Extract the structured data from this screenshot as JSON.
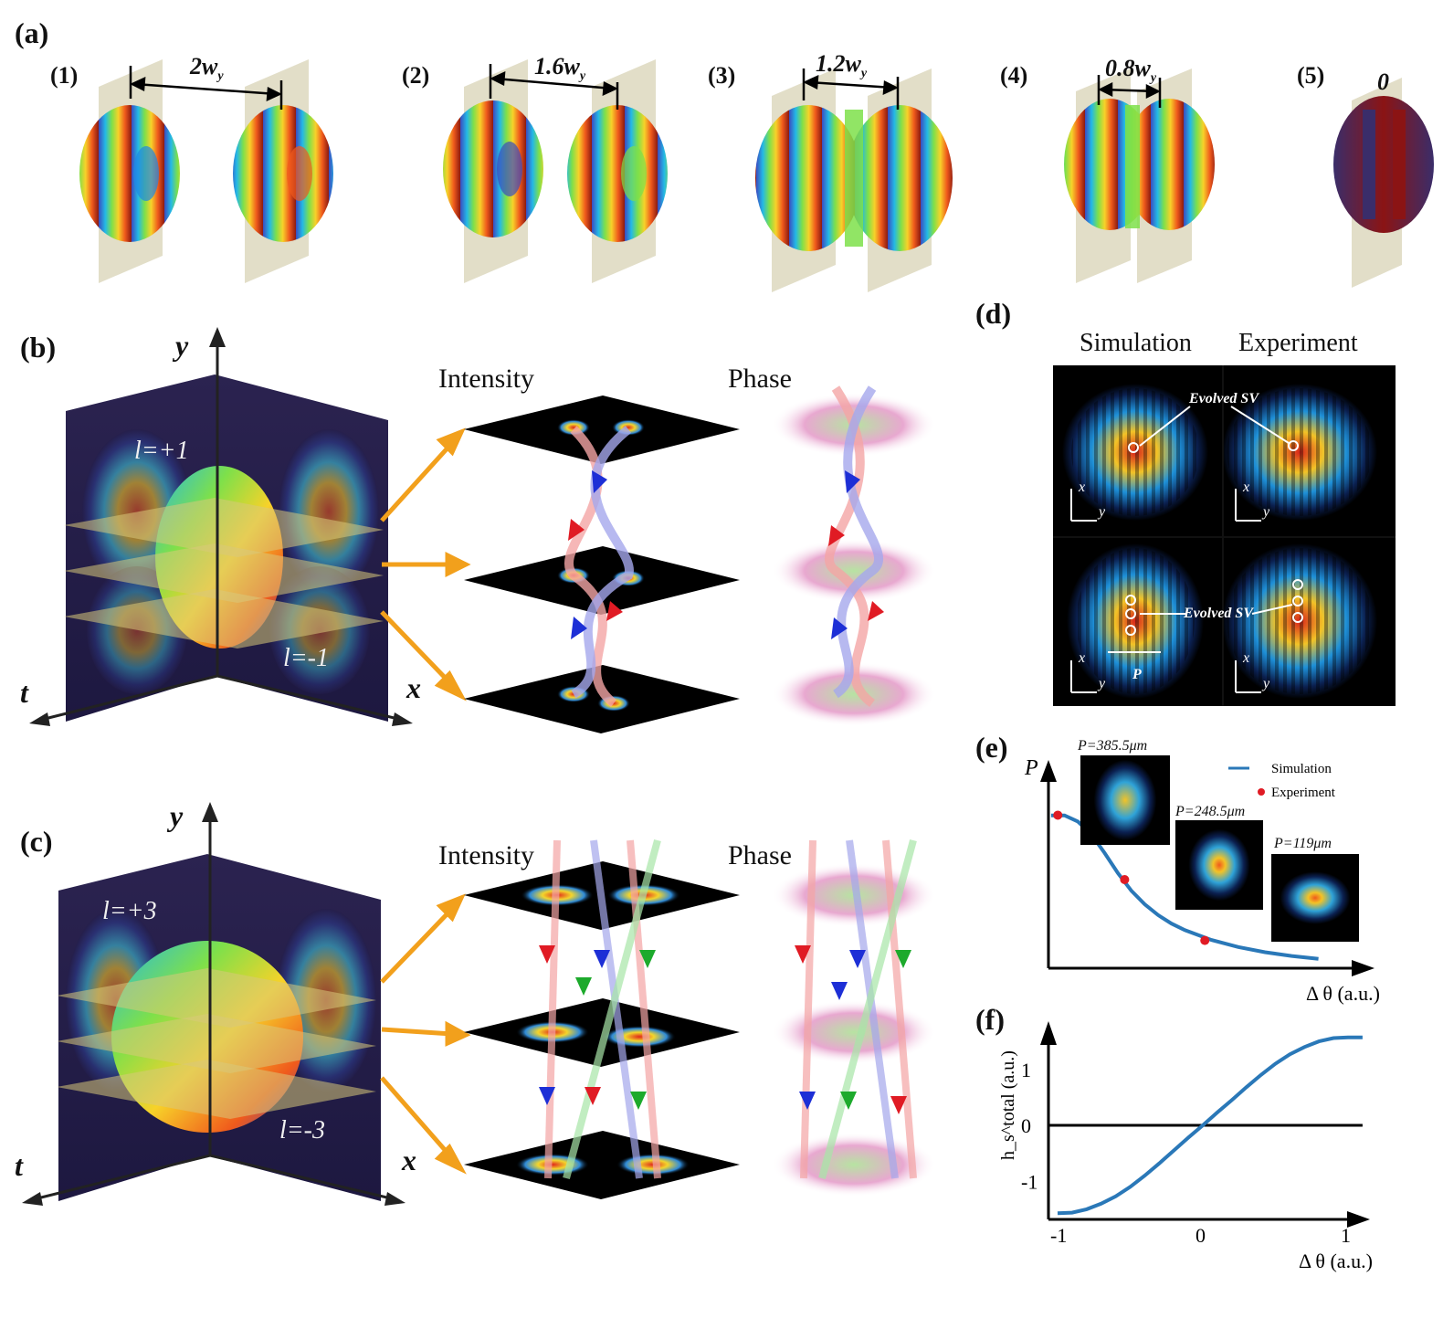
{
  "panel_a": {
    "label": "(a)",
    "items": [
      {
        "num": "(1)",
        "dist": "2w",
        "sub": "y"
      },
      {
        "num": "(2)",
        "dist": "1.6w",
        "sub": "y"
      },
      {
        "num": "(3)",
        "dist": "1.2w",
        "sub": "y"
      },
      {
        "num": "(4)",
        "dist": "0.8w",
        "sub": "y"
      },
      {
        "num": "(5)",
        "dist": "0",
        "sub": ""
      }
    ]
  },
  "panel_b": {
    "label": "(b)",
    "axis_y": "y",
    "axis_t": "t",
    "axis_x": "x",
    "l_top": "l=+1",
    "l_bottom": "l=-1",
    "col_intensity": "Intensity",
    "col_phase": "Phase"
  },
  "panel_c": {
    "label": "(c)",
    "axis_y": "y",
    "axis_t": "t",
    "axis_x": "x",
    "l_top": "l=+3",
    "l_bottom": "l=-3",
    "col_intensity": "Intensity",
    "col_phase": "Phase"
  },
  "panel_d": {
    "label": "(d)",
    "col_sim": "Simulation",
    "col_exp": "Experiment",
    "annot_top": "Evolved SV",
    "annot_bottom": "Evolved SV",
    "x": "x",
    "y": "y",
    "p": "P"
  },
  "panel_e": {
    "label": "(e)",
    "insets": [
      "P=385.5μm",
      "P=248.5μm",
      "P=119μm"
    ],
    "chart_data": {
      "type": "line",
      "ylabel": "P",
      "xlabel": "Δ θ (a.u.)",
      "legend": "top-right",
      "series": [
        {
          "name": "Simulation",
          "style": "line",
          "x": [
            -1.0,
            -0.9,
            -0.8,
            -0.7,
            -0.6,
            -0.5,
            -0.4,
            -0.3,
            -0.2,
            -0.1,
            0.0,
            0.2,
            0.4,
            0.6,
            0.8,
            1.0
          ],
          "y": [
            385,
            385,
            372,
            345,
            305,
            262,
            225,
            196,
            173,
            155,
            141,
            120,
            105,
            94,
            86,
            80
          ]
        },
        {
          "name": "Experiment",
          "style": "scatter",
          "x": [
            -0.95,
            -0.45,
            0.15
          ],
          "y": [
            385.5,
            248.5,
            119
          ]
        }
      ],
      "colors": {
        "Simulation": "#2a78b8",
        "Experiment": "#e01b24"
      }
    }
  },
  "panel_f": {
    "label": "(f)",
    "chart_data": {
      "type": "line",
      "xlabel": "Δ θ (a.u.)",
      "ylabel": "h_s^total (a.u.)",
      "xticks": [
        "-1",
        "0",
        "1"
      ],
      "yticks": [
        "1",
        "0",
        "-1"
      ],
      "ylim": [
        -1.6,
        1.6
      ],
      "series": [
        {
          "name": "",
          "x": [
            -1.0,
            -0.9,
            -0.8,
            -0.7,
            -0.6,
            -0.5,
            -0.4,
            -0.3,
            -0.2,
            -0.1,
            0.0,
            0.1,
            0.2,
            0.3,
            0.4,
            0.5,
            0.6,
            0.7,
            0.8,
            0.9,
            1.0,
            1.1
          ],
          "y": [
            -1.57,
            -1.56,
            -1.5,
            -1.4,
            -1.27,
            -1.1,
            -0.9,
            -0.68,
            -0.45,
            -0.22,
            0.0,
            0.23,
            0.45,
            0.68,
            0.9,
            1.1,
            1.27,
            1.4,
            1.5,
            1.56,
            1.57,
            1.57
          ]
        }
      ],
      "colors": {
        "curve": "#2a78b8",
        "zero_line": "#000000"
      }
    }
  }
}
